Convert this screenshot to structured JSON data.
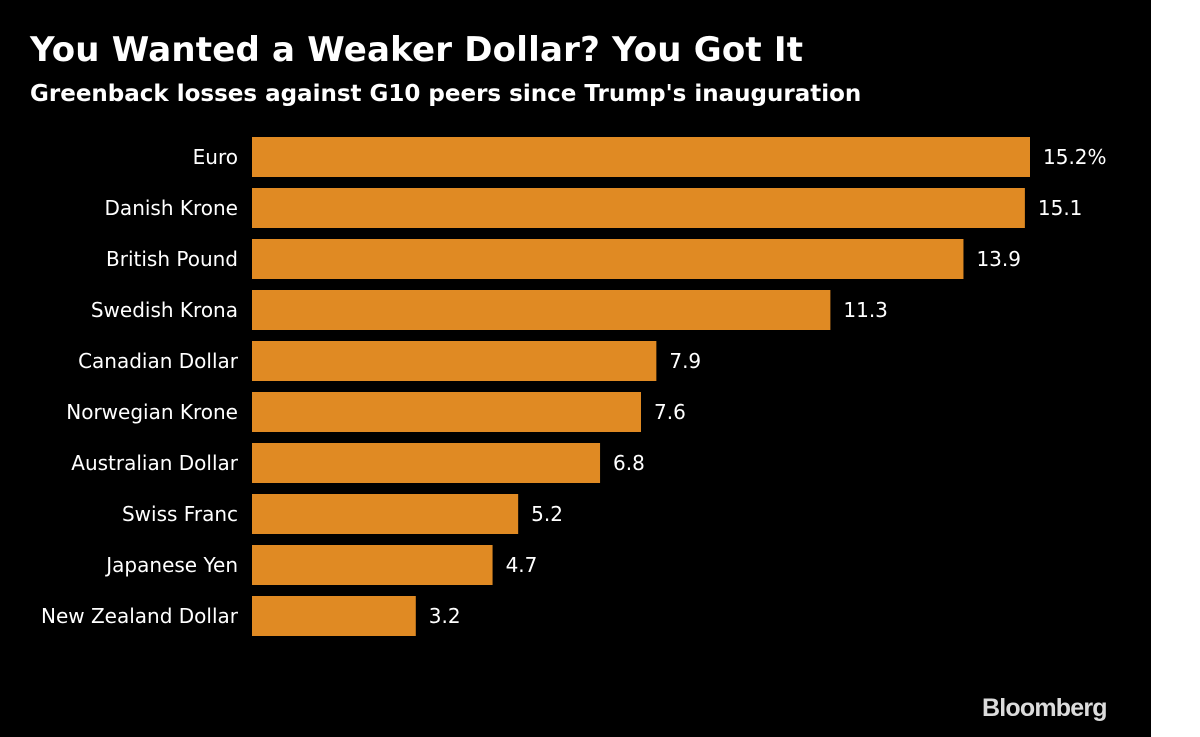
{
  "title": "You Wanted a Weaker Dollar? You Got It",
  "subtitle": "Greenback losses against G10 peers since Trump's inauguration",
  "source_logo": "Bloomberg",
  "colors": {
    "background": "#000000",
    "bar": "#e08a23",
    "text": "#ffffff"
  },
  "chart_data": {
    "type": "bar",
    "orientation": "horizontal",
    "title": "You Wanted a Weaker Dollar? You Got It",
    "subtitle": "Greenback losses against G10 peers since Trump's inauguration",
    "categories": [
      "Euro",
      "Danish Krone",
      "British Pound",
      "Swedish Krona",
      "Canadian Dollar",
      "Norwegian Krone",
      "Australian Dollar",
      "Swiss Franc",
      "Japanese Yen",
      "New Zealand Dollar"
    ],
    "values": [
      15.2,
      15.1,
      13.9,
      11.3,
      7.9,
      7.6,
      6.8,
      5.2,
      4.7,
      3.2
    ],
    "value_labels": [
      "15.2%",
      "15.1",
      "13.9",
      "11.3",
      "7.9",
      "7.6",
      "6.8",
      "5.2",
      "4.7",
      "3.2"
    ],
    "unit": "%",
    "xlim": [
      0,
      15.2
    ],
    "grid": false,
    "legend": "none"
  }
}
